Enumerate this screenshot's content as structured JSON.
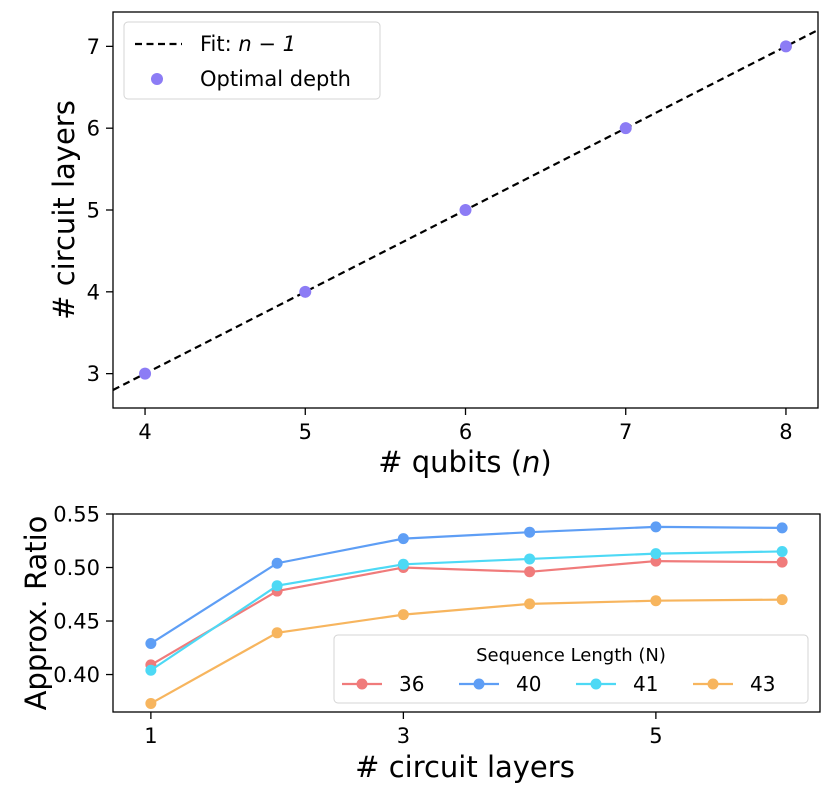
{
  "chart_data": [
    {
      "type": "scatter",
      "xlabel": "# qubits (",
      "xlabel_var": "n",
      "xlabel_close": ")",
      "ylabel": "# circuit layers",
      "xlim": [
        3.8,
        8.2
      ],
      "ylim": [
        2.58,
        7.42
      ],
      "xticks": [
        "4",
        "5",
        "6",
        "7",
        "8"
      ],
      "yticks": [
        "3",
        "4",
        "5",
        "6",
        "7"
      ],
      "fit": {
        "label_prefix": "Fit: ",
        "label_expr": "n − 1",
        "slope": 1,
        "intercept": -1,
        "color": "#000000"
      },
      "series": [
        {
          "name": "Optimal depth",
          "x": [
            4,
            5,
            6,
            7,
            8
          ],
          "y": [
            3,
            4,
            5,
            6,
            7
          ],
          "color": "#8C7CF5"
        }
      ],
      "legend_position": "top-left"
    },
    {
      "type": "line",
      "xlabel": "# circuit layers",
      "ylabel": "Approx. Ratio",
      "xlim": [
        0.7,
        6.3
      ],
      "ylim": [
        0.365,
        0.55
      ],
      "xticks": [
        "1",
        "3",
        "5"
      ],
      "yticks": [
        "0.40",
        "0.45",
        "0.50",
        "0.55"
      ],
      "x": [
        1,
        2,
        3,
        4,
        5,
        6
      ],
      "legend_title": "Sequence Length (N)",
      "legend_position": "lower-right",
      "series": [
        {
          "name": "36",
          "values": [
            0.409,
            0.478,
            0.5,
            0.496,
            0.506,
            0.505
          ],
          "color": "#F07B7B"
        },
        {
          "name": "40",
          "values": [
            0.429,
            0.504,
            0.527,
            0.533,
            0.538,
            0.537
          ],
          "color": "#5E9EF5"
        },
        {
          "name": "41",
          "values": [
            0.404,
            0.483,
            0.503,
            0.508,
            0.513,
            0.515
          ],
          "color": "#4DD9F5"
        },
        {
          "name": "43",
          "values": [
            0.373,
            0.439,
            0.456,
            0.466,
            0.469,
            0.47
          ],
          "color": "#F7B55E"
        }
      ]
    }
  ]
}
